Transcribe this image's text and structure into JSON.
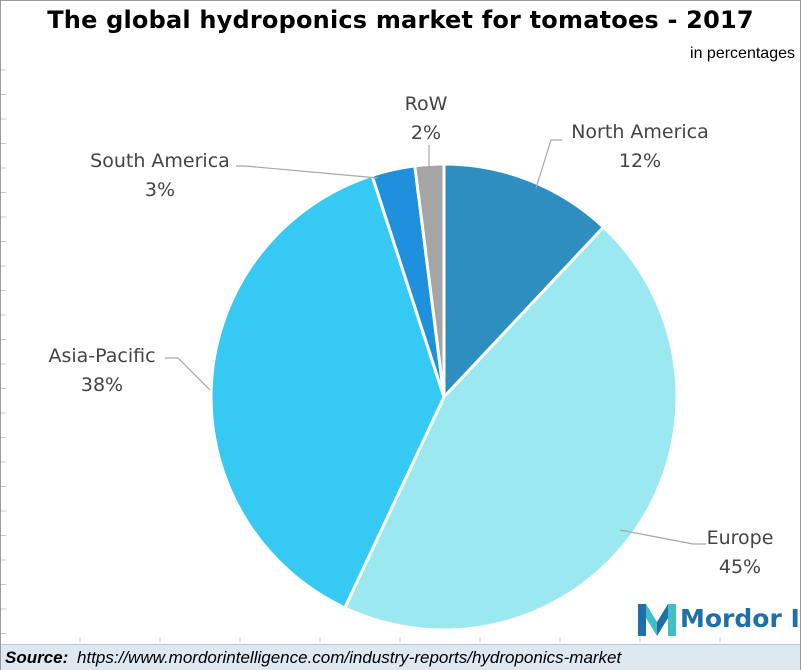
{
  "chart_data": {
    "type": "pie",
    "title": "The global hydroponics market for tomatoes - 2017",
    "unit_note": "in percentages",
    "start_angle_deg": 0,
    "direction": "clockwise",
    "slices": [
      {
        "label": "North America",
        "value": 12,
        "display": "12%",
        "color": "#2e8ec0"
      },
      {
        "label": "Europe",
        "value": 45,
        "display": "45%",
        "color": "#9ce8f1"
      },
      {
        "label": "Asia-Pacific",
        "value": 38,
        "display": "38%",
        "color": "#36c9f4"
      },
      {
        "label": "South America",
        "value": 3,
        "display": "3%",
        "color": "#1e90dc"
      },
      {
        "label": "RoW",
        "value": 2,
        "display": "2%",
        "color": "#a5a5a5"
      }
    ]
  },
  "branding": {
    "logo_text": "Mordor I",
    "logo_colors": [
      "#1f6fa8",
      "#3ec0c4"
    ]
  },
  "source": {
    "label": "Source:",
    "url": "https://www.mordorintelligence.com/industry-reports/hydroponics-market"
  }
}
